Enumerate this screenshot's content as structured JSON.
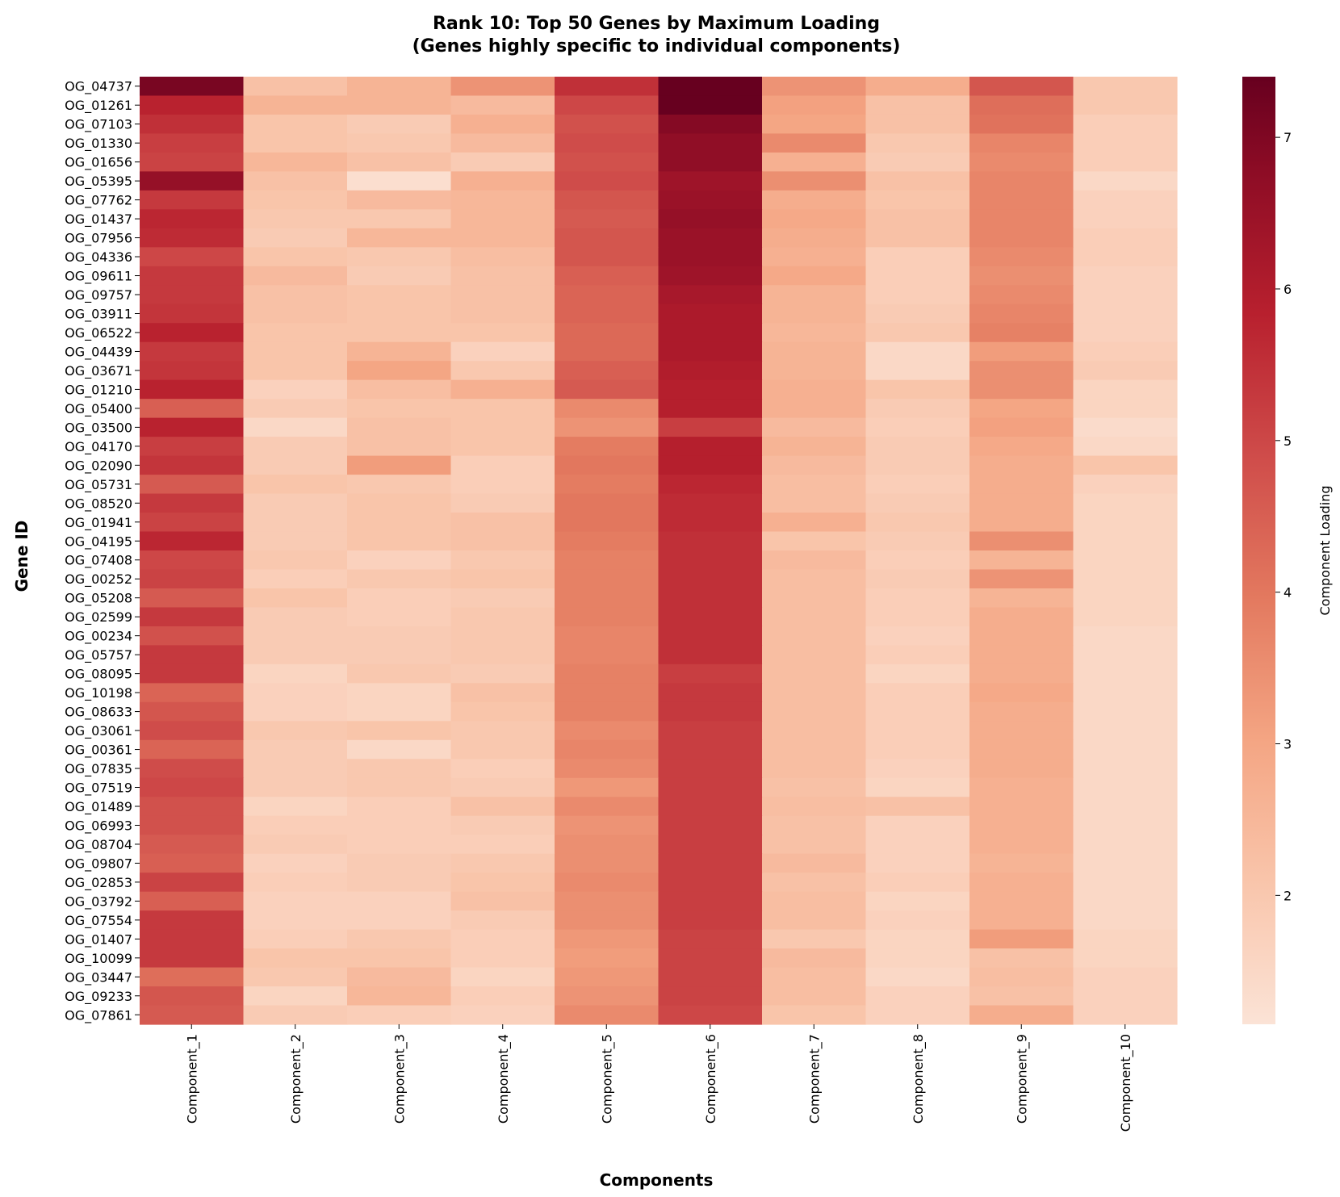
{
  "chart_data": {
    "type": "heatmap",
    "title_line1": "Rank 10: Top 50 Genes by Maximum Loading",
    "title_line2": "(Genes highly specific to individual components)",
    "xlabel": "Components",
    "ylabel": "Gene ID",
    "colorbar_label": "Component Loading",
    "colormap": "RdBu_r (red half)",
    "vmin": 1.15,
    "vmax": 7.4,
    "colorbar_ticks": [
      2,
      3,
      4,
      5,
      6,
      7
    ],
    "columns": [
      "Component_1",
      "Component_2",
      "Component_3",
      "Component_4",
      "Component_5",
      "Component_6",
      "Component_7",
      "Component_8",
      "Component_9",
      "Component_10"
    ],
    "rows": [
      "OG_04737",
      "OG_01261",
      "OG_07103",
      "OG_01330",
      "OG_01656",
      "OG_05395",
      "OG_07762",
      "OG_01437",
      "OG_07956",
      "OG_04336",
      "OG_09611",
      "OG_09757",
      "OG_03911",
      "OG_06522",
      "OG_04439",
      "OG_03671",
      "OG_01210",
      "OG_05400",
      "OG_03500",
      "OG_04170",
      "OG_02090",
      "OG_05731",
      "OG_08520",
      "OG_01941",
      "OG_04195",
      "OG_07408",
      "OG_00252",
      "OG_05208",
      "OG_02599",
      "OG_00234",
      "OG_05757",
      "OG_08095",
      "OG_10198",
      "OG_08633",
      "OG_03061",
      "OG_00361",
      "OG_07835",
      "OG_07519",
      "OG_01489",
      "OG_06993",
      "OG_08704",
      "OG_09807",
      "OG_02853",
      "OG_03792",
      "OG_07554",
      "OG_01407",
      "OG_10099",
      "OG_03447",
      "OG_09233",
      "OG_07861"
    ],
    "values": [
      [
        7.1,
        2.2,
        2.6,
        3.4,
        5.5,
        7.4,
        3.4,
        2.8,
        4.7,
        2.0
      ],
      [
        5.8,
        2.6,
        2.6,
        2.4,
        5.0,
        7.4,
        3.1,
        2.2,
        4.2,
        2.0
      ],
      [
        5.5,
        2.1,
        1.9,
        2.7,
        4.8,
        6.9,
        3.0,
        2.2,
        4.1,
        1.8
      ],
      [
        5.2,
        2.1,
        2.0,
        2.4,
        4.9,
        6.7,
        3.6,
        2.0,
        3.7,
        1.8
      ],
      [
        5.1,
        2.5,
        2.2,
        1.9,
        4.8,
        6.7,
        2.7,
        1.9,
        3.6,
        1.8
      ],
      [
        6.6,
        2.2,
        1.3,
        2.7,
        4.9,
        6.4,
        3.5,
        2.2,
        3.7,
        1.5
      ],
      [
        5.3,
        2.1,
        2.4,
        2.5,
        4.7,
        6.5,
        2.8,
        2.1,
        3.7,
        1.7
      ],
      [
        5.7,
        2.0,
        2.0,
        2.5,
        4.6,
        6.6,
        2.9,
        2.2,
        3.7,
        1.7
      ],
      [
        5.6,
        1.9,
        2.5,
        2.5,
        4.7,
        6.5,
        2.8,
        2.2,
        3.7,
        1.8
      ],
      [
        5.0,
        2.1,
        2.0,
        2.3,
        4.7,
        6.5,
        2.7,
        1.8,
        3.6,
        1.8
      ],
      [
        5.3,
        2.4,
        1.9,
        2.2,
        4.5,
        6.4,
        2.9,
        1.8,
        3.5,
        1.7
      ],
      [
        5.3,
        2.2,
        2.1,
        2.2,
        4.4,
        6.2,
        2.6,
        1.8,
        3.6,
        1.7
      ],
      [
        5.4,
        2.2,
        2.1,
        2.2,
        4.4,
        6.1,
        2.6,
        1.9,
        3.7,
        1.7
      ],
      [
        5.8,
        2.1,
        2.1,
        2.1,
        4.3,
        6.1,
        2.5,
        2.0,
        3.8,
        1.7
      ],
      [
        5.3,
        2.1,
        2.6,
        1.7,
        4.3,
        6.1,
        2.6,
        1.5,
        3.2,
        1.8
      ],
      [
        5.4,
        2.1,
        3.0,
        2.0,
        4.5,
        6.0,
        2.6,
        1.5,
        3.5,
        1.9
      ],
      [
        5.8,
        1.7,
        2.3,
        2.7,
        4.6,
        5.9,
        2.7,
        2.1,
        3.5,
        1.6
      ],
      [
        4.5,
        1.9,
        2.1,
        2.1,
        3.6,
        5.9,
        2.7,
        1.9,
        3.0,
        1.6
      ],
      [
        5.8,
        1.5,
        2.2,
        2.1,
        3.4,
        5.2,
        2.4,
        1.8,
        3.1,
        1.4
      ],
      [
        5.2,
        1.9,
        2.2,
        2.1,
        3.9,
        5.9,
        2.6,
        1.9,
        2.9,
        1.5
      ],
      [
        5.4,
        1.9,
        3.2,
        1.8,
        4.0,
        5.9,
        2.4,
        1.9,
        2.8,
        2.1
      ],
      [
        4.6,
        2.1,
        2.0,
        1.8,
        3.9,
        5.7,
        2.3,
        1.8,
        2.8,
        1.7
      ],
      [
        5.3,
        1.9,
        2.1,
        1.9,
        4.0,
        5.6,
        2.3,
        1.9,
        2.8,
        1.6
      ],
      [
        5.1,
        1.9,
        2.1,
        2.2,
        4.0,
        5.6,
        2.7,
        2.0,
        2.8,
        1.6
      ],
      [
        5.7,
        1.9,
        2.1,
        2.2,
        3.9,
        5.5,
        2.1,
        1.9,
        3.5,
        1.6
      ],
      [
        5.0,
        2.0,
        1.7,
        2.0,
        3.8,
        5.5,
        2.4,
        1.8,
        2.6,
        1.6
      ],
      [
        5.1,
        1.8,
        2.0,
        2.1,
        3.8,
        5.5,
        2.3,
        1.9,
        3.4,
        1.6
      ],
      [
        4.6,
        2.1,
        1.8,
        1.9,
        3.8,
        5.5,
        2.3,
        1.8,
        2.6,
        1.6
      ],
      [
        5.3,
        1.9,
        1.8,
        2.0,
        3.8,
        5.5,
        2.3,
        1.8,
        2.8,
        1.6
      ],
      [
        4.8,
        1.9,
        1.9,
        2.0,
        3.7,
        5.5,
        2.3,
        1.7,
        2.8,
        1.5
      ],
      [
        5.3,
        1.9,
        1.9,
        2.0,
        3.7,
        5.5,
        2.3,
        1.8,
        2.8,
        1.5
      ],
      [
        5.3,
        1.6,
        2.0,
        1.9,
        3.8,
        5.2,
        2.3,
        1.6,
        2.8,
        1.5
      ],
      [
        4.4,
        1.7,
        1.6,
        2.2,
        3.8,
        5.3,
        2.3,
        1.8,
        2.9,
        1.5
      ],
      [
        4.7,
        1.7,
        1.6,
        2.1,
        3.8,
        5.3,
        2.3,
        1.8,
        2.8,
        1.5
      ],
      [
        4.9,
        2.0,
        2.1,
        2.0,
        3.6,
        5.2,
        2.3,
        1.8,
        2.8,
        1.5
      ],
      [
        4.4,
        1.9,
        1.5,
        2.0,
        3.7,
        5.2,
        2.3,
        1.8,
        2.8,
        1.5
      ],
      [
        4.9,
        1.9,
        2.0,
        1.8,
        3.6,
        5.2,
        2.3,
        1.7,
        2.8,
        1.5
      ],
      [
        5.0,
        1.9,
        2.0,
        1.9,
        3.3,
        5.2,
        2.2,
        1.6,
        2.7,
        1.5
      ],
      [
        4.8,
        1.6,
        1.8,
        2.2,
        3.6,
        5.2,
        2.3,
        2.2,
        2.7,
        1.5
      ],
      [
        4.8,
        1.8,
        1.8,
        1.9,
        3.4,
        5.2,
        2.2,
        1.7,
        2.7,
        1.5
      ],
      [
        4.6,
        1.9,
        1.8,
        1.8,
        3.5,
        5.2,
        2.2,
        1.7,
        2.7,
        1.5
      ],
      [
        4.5,
        1.7,
        1.9,
        2.0,
        3.5,
        5.2,
        2.4,
        1.7,
        2.6,
        1.5
      ],
      [
        5.1,
        1.8,
        1.9,
        2.1,
        3.6,
        5.2,
        2.2,
        1.8,
        2.7,
        1.5
      ],
      [
        4.5,
        1.7,
        1.7,
        2.2,
        3.5,
        5.2,
        2.3,
        1.6,
        2.7,
        1.5
      ],
      [
        5.3,
        1.7,
        1.7,
        1.9,
        3.5,
        5.2,
        2.3,
        1.7,
        2.7,
        1.5
      ],
      [
        5.3,
        1.8,
        2.0,
        1.8,
        3.3,
        5.1,
        2.0,
        1.6,
        3.2,
        1.6
      ],
      [
        5.3,
        2.1,
        2.1,
        1.8,
        3.2,
        5.1,
        2.4,
        1.6,
        2.2,
        1.6
      ],
      [
        4.2,
        2.0,
        2.4,
        1.6,
        3.3,
        5.1,
        2.3,
        1.5,
        2.3,
        1.7
      ],
      [
        4.7,
        1.6,
        2.5,
        1.8,
        3.4,
        5.1,
        2.3,
        1.7,
        2.2,
        1.7
      ],
      [
        4.6,
        1.9,
        1.8,
        1.7,
        3.6,
        5.0,
        2.1,
        1.7,
        2.8,
        1.7
      ]
    ]
  }
}
